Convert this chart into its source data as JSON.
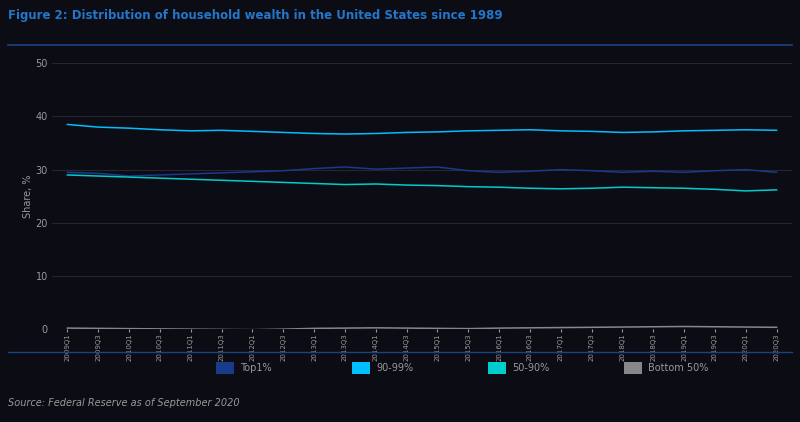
{
  "title": "Figure 2: Distribution of household wealth in the United States since 1989",
  "source": "Source: Federal Reserve as of September 2020",
  "bg_color": "#0c0c14",
  "band_color": "#1a1a2a",
  "dark_band": "#111118",
  "title_color": "#2277cc",
  "title_underline": "#1a4488",
  "text_color": "#999999",
  "source_bg": "#14142a",
  "legend_labels": [
    "Top1%",
    "90-99%",
    "50-90%",
    "Bottom 50%"
  ],
  "legend_colors": [
    "#1a3a8a",
    "#00bfff",
    "#00cccc",
    "#888888"
  ],
  "quarters": [
    "2009Q1",
    "2009Q3",
    "2010Q1",
    "2010Q3",
    "2011Q1",
    "2011Q3",
    "2012Q1",
    "2012Q3",
    "2013Q1",
    "2013Q3",
    "2014Q1",
    "2014Q3",
    "2015Q1",
    "2015Q3",
    "2016Q1",
    "2016Q3",
    "2017Q1",
    "2017Q3",
    "2018Q1",
    "2018Q3",
    "2019Q1",
    "2019Q3",
    "2020Q1",
    "2020Q3"
  ],
  "top1": [
    29.5,
    29.3,
    28.8,
    29.0,
    29.2,
    29.4,
    29.6,
    29.8,
    30.2,
    30.5,
    30.1,
    30.3,
    30.5,
    29.8,
    29.5,
    29.7,
    30.0,
    29.8,
    29.5,
    29.7,
    29.5,
    29.8,
    30.0,
    29.5
  ],
  "pct90_99": [
    38.5,
    38.0,
    37.8,
    37.5,
    37.3,
    37.4,
    37.2,
    37.0,
    36.8,
    36.7,
    36.8,
    37.0,
    37.1,
    37.3,
    37.4,
    37.5,
    37.3,
    37.2,
    37.0,
    37.1,
    37.3,
    37.4,
    37.5,
    37.4
  ],
  "pct50_90": [
    29.0,
    28.8,
    28.6,
    28.4,
    28.2,
    28.0,
    27.8,
    27.6,
    27.4,
    27.2,
    27.3,
    27.1,
    27.0,
    26.8,
    26.7,
    26.5,
    26.4,
    26.5,
    26.7,
    26.6,
    26.5,
    26.3,
    26.0,
    26.2
  ],
  "bottom50": [
    0.2,
    0.15,
    0.1,
    0.05,
    0.0,
    -0.05,
    -0.1,
    0.0,
    0.15,
    0.2,
    0.25,
    0.2,
    0.15,
    0.1,
    0.2,
    0.25,
    0.3,
    0.35,
    0.4,
    0.45,
    0.5,
    0.45,
    0.4,
    0.35
  ],
  "ylim": [
    0,
    50
  ],
  "yticks": [
    0,
    10,
    20,
    30,
    40,
    50
  ],
  "ylabel": "Share, %"
}
